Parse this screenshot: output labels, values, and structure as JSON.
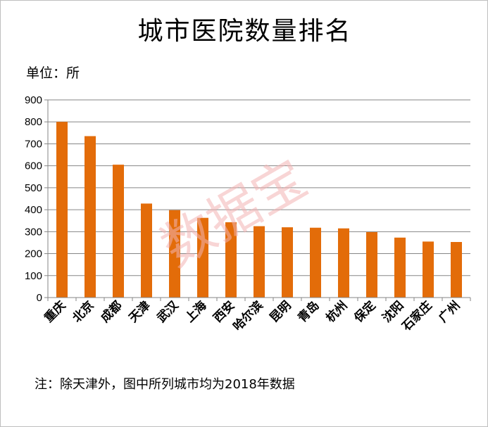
{
  "chart_data": {
    "type": "bar",
    "title": "城市医院数量排名",
    "unit_label": "单位：所",
    "note": "注：除天津外，图中所列城市均为2018年数据",
    "watermark": "数据宝",
    "categories": [
      "重庆",
      "北京",
      "成都",
      "天津",
      "武汉",
      "上海",
      "西安",
      "哈尔滨",
      "昆明",
      "青岛",
      "杭州",
      "保定",
      "沈阳",
      "石家庄",
      "广州"
    ],
    "values": [
      800,
      735,
      605,
      428,
      398,
      363,
      343,
      325,
      320,
      318,
      315,
      298,
      273,
      255,
      253
    ],
    "ylim": [
      0,
      900
    ],
    "yticks": [
      0,
      100,
      200,
      300,
      400,
      500,
      600,
      700,
      800,
      900
    ],
    "grid": true,
    "legend": "none",
    "bar_color": "#e36c09",
    "grid_color": "#868686"
  }
}
